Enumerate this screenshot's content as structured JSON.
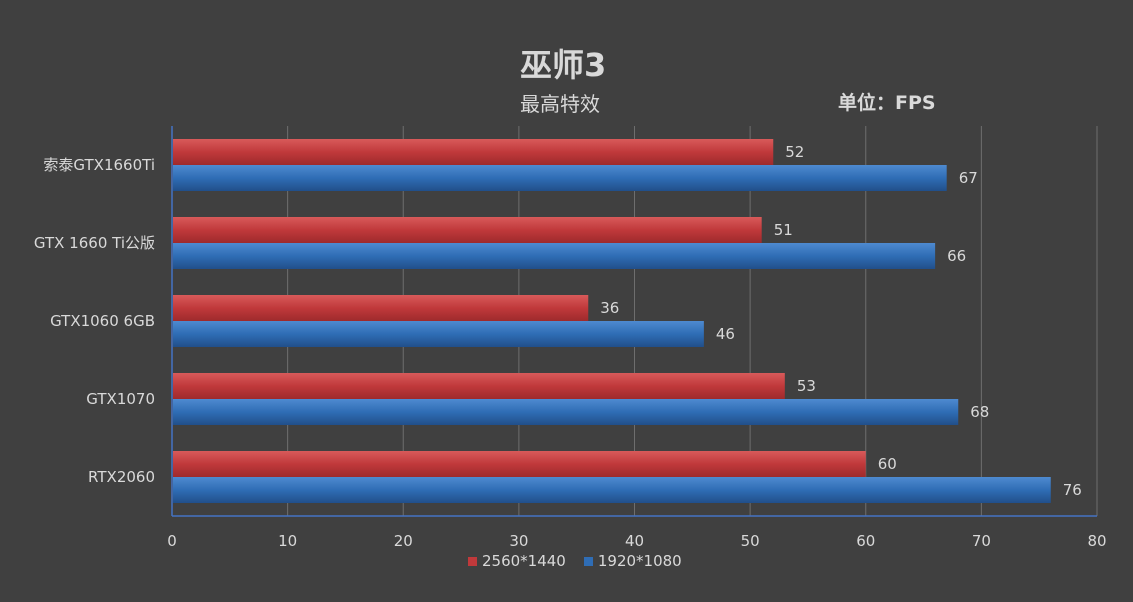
{
  "chart_data": {
    "type": "bar",
    "orientation": "horizontal",
    "title": "巫师3",
    "subtitle": "最高特效",
    "unit_label": "单位：FPS",
    "categories": [
      "索泰GTX1660Ti",
      "GTX 1660 Ti公版",
      "GTX1060 6GB",
      "GTX1070",
      "RTX2060"
    ],
    "series": [
      {
        "name": "2560*1440",
        "color": "#c0393b",
        "values": [
          52,
          51,
          36,
          53,
          60
        ]
      },
      {
        "name": "1920*1080",
        "color": "#2f6db5",
        "values": [
          67,
          66,
          46,
          68,
          76
        ]
      }
    ],
    "xlim": [
      0,
      80
    ],
    "xticks": [
      "0",
      "10",
      "20",
      "30",
      "40",
      "50",
      "60",
      "70",
      "80"
    ],
    "grid": true,
    "legend_position": "bottom"
  }
}
